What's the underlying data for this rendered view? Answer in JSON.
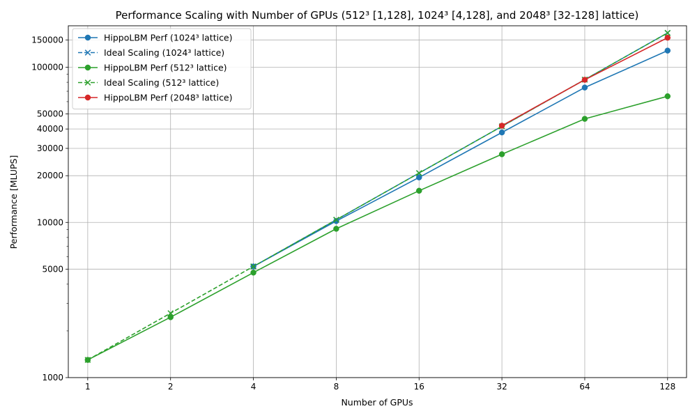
{
  "chart_data": {
    "type": "line",
    "title": "Performance Scaling with Number of GPUs (512³ [1,128], 1024³ [4,128], and 2048³ [32-128] lattice)",
    "xlabel": "Number of GPUs",
    "ylabel": "Performance [MLUPS]",
    "x_scale": "log2",
    "y_scale": "log",
    "xlim": [
      0.85,
      150
    ],
    "ylim": [
      1000,
      185000
    ],
    "x_ticks": [
      1,
      2,
      4,
      8,
      16,
      32,
      64,
      128
    ],
    "x_tick_labels": [
      "1",
      "2",
      "4",
      "8",
      "16",
      "32",
      "64",
      "128"
    ],
    "y_ticks": [
      1000,
      5000,
      10000,
      20000,
      30000,
      40000,
      50000,
      100000,
      150000
    ],
    "y_tick_labels": [
      "1000",
      "5000",
      "10000",
      "20000",
      "30000",
      "40000",
      "50000",
      "100000",
      "150000"
    ],
    "grid": true,
    "legend_position": "top-left",
    "series": [
      {
        "name": "HippoLBM Perf (1024³ lattice)",
        "color": "#1f77b4",
        "line": "solid",
        "marker": "circle",
        "x": [
          4,
          8,
          16,
          32,
          64,
          128
        ],
        "y": [
          5200,
          10200,
          19500,
          38000,
          74000,
          128000
        ]
      },
      {
        "name": "Ideal Scaling (1024³ lattice)",
        "color": "#1f77b4",
        "line": "dashed",
        "marker": "x",
        "x": [
          4,
          8,
          16,
          32,
          64,
          128
        ],
        "y": [
          5200,
          10400,
          20800,
          41600,
          83200,
          166400
        ]
      },
      {
        "name": "HippoLBM Perf (512³ lattice)",
        "color": "#2ca02c",
        "line": "solid",
        "marker": "circle",
        "x": [
          1,
          2,
          4,
          8,
          16,
          32,
          64,
          128
        ],
        "y": [
          1300,
          2450,
          4750,
          9100,
          16000,
          27500,
          46500,
          65000
        ]
      },
      {
        "name": "Ideal Scaling (512³ lattice)",
        "color": "#2ca02c",
        "line": "dashed",
        "marker": "x",
        "x": [
          1,
          2,
          4,
          8,
          16,
          32,
          64,
          128
        ],
        "y": [
          1300,
          2600,
          5200,
          10400,
          20800,
          41600,
          83200,
          166400
        ]
      },
      {
        "name": "HippoLBM Perf (2048³ lattice)",
        "color": "#d62728",
        "line": "solid",
        "marker": "circle",
        "x": [
          32,
          64,
          128
        ],
        "y": [
          42000,
          83000,
          155000
        ]
      }
    ]
  }
}
